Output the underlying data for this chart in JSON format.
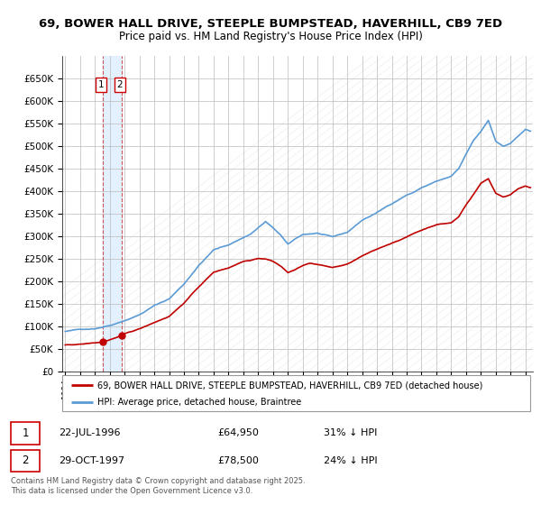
{
  "title1": "69, BOWER HALL DRIVE, STEEPLE BUMPSTEAD, HAVERHILL, CB9 7ED",
  "title2": "Price paid vs. HM Land Registry's House Price Index (HPI)",
  "legend_label_red": "69, BOWER HALL DRIVE, STEEPLE BUMPSTEAD, HAVERHILL, CB9 7ED (detached house)",
  "legend_label_blue": "HPI: Average price, detached house, Braintree",
  "transaction1_date": "22-JUL-1996",
  "transaction1_price": "£64,950",
  "transaction1_hpi": "31% ↓ HPI",
  "transaction1_year": 1996.55,
  "transaction1_value": 64950,
  "transaction2_date": "29-OCT-1997",
  "transaction2_price": "£78,500",
  "transaction2_hpi": "24% ↓ HPI",
  "transaction2_year": 1997.83,
  "transaction2_value": 78500,
  "footer": "Contains HM Land Registry data © Crown copyright and database right 2025.\nThis data is licensed under the Open Government Licence v3.0.",
  "ylim_max": 700000,
  "xlim_start": 1993.8,
  "xlim_end": 2025.5,
  "background_color": "#ffffff",
  "plot_bg_color": "#ffffff",
  "grid_color": "#bbbbbb",
  "hpi_color": "#5b9bd5",
  "price_color": "#c00000",
  "vline_color": "#cc4444",
  "band_color": "#ddeeff",
  "hatch_color": "#dddddd"
}
